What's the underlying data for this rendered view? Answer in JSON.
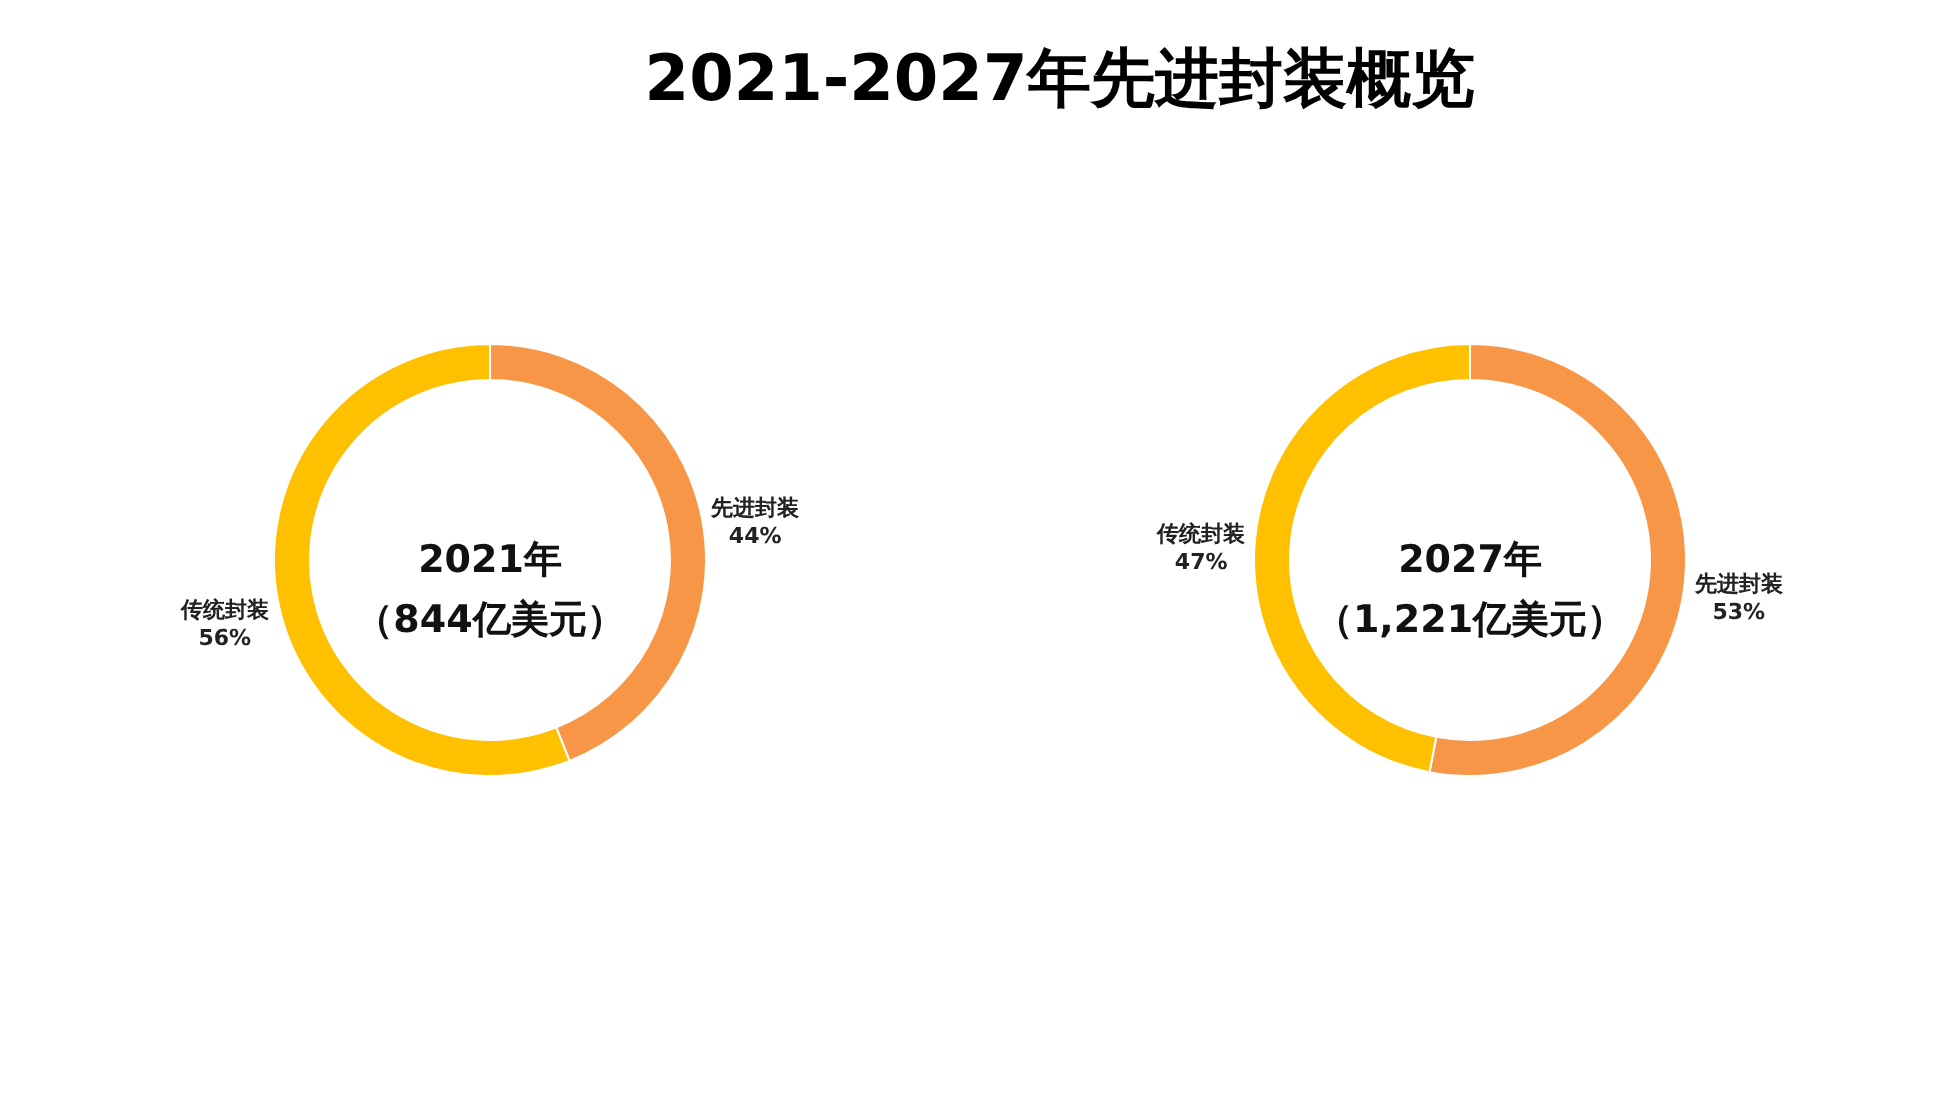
{
  "chart_data": [
    {
      "type": "donut",
      "title": "2021-2027年先进封装概览",
      "categories": [
        "先进封装",
        "传统封装"
      ],
      "values": [
        44,
        56
      ],
      "value_labels": [
        "44%",
        "56%"
      ],
      "colors": [
        "#f79646",
        "#ffc000"
      ],
      "annotations": [
        "2021年",
        "（844亿美元）"
      ]
    },
    {
      "type": "donut",
      "categories": [
        "先进封装",
        "传统封装"
      ],
      "values": [
        53,
        47
      ],
      "value_labels": [
        "53%",
        "47%"
      ],
      "colors": [
        "#f79646",
        "#ffc000"
      ],
      "annotations": [
        "2027年",
        "（1,221亿美元）"
      ]
    }
  ]
}
